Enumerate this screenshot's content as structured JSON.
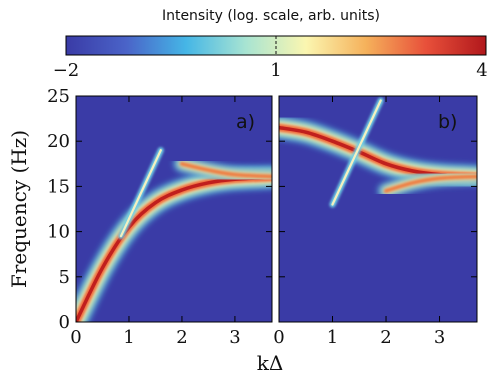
{
  "chart_data": {
    "type": "heatmap",
    "colorbar": {
      "title": "Intensity (log. scale, arb. units)",
      "ticks": [
        "−2",
        "1",
        "4"
      ],
      "range": [
        -2,
        4
      ],
      "colors": [
        "#3a3ba6",
        "#4a63c8",
        "#45b6e6",
        "#a8e4d2",
        "#fbf6b0",
        "#f5b15b",
        "#e8503a",
        "#b1181c"
      ]
    },
    "xlabel": "kΔ",
    "ylabel": "Frequency (Hz)",
    "ylim": [
      0,
      25
    ],
    "xlim": [
      0,
      3.7
    ],
    "y_ticks": [
      "0",
      "5",
      "10",
      "15",
      "20",
      "25"
    ],
    "x_ticks_a": [
      "0",
      "1",
      "2",
      "3"
    ],
    "x_ticks_b": [
      "0",
      "1",
      "2",
      "3"
    ],
    "panels": [
      {
        "label": "a)",
        "curves": [
          {
            "role": "main branch",
            "points": [
              [
                0,
                0
              ],
              [
                0.5,
                6
              ],
              [
                1.0,
                10.5
              ],
              [
                1.5,
                13.2
              ],
              [
                2.0,
                14.6
              ],
              [
                2.5,
                15.4
              ],
              [
                3.0,
                15.8
              ],
              [
                3.7,
                16.0
              ]
            ]
          },
          {
            "role": "upper branch",
            "points": [
              [
                2.0,
                17.5
              ],
              [
                2.5,
                16.8
              ],
              [
                3.0,
                16.3
              ],
              [
                3.7,
                16.1
              ]
            ]
          },
          {
            "role": "thin line",
            "points": [
              [
                0.85,
                9.5
              ],
              [
                1.6,
                19.0
              ]
            ]
          }
        ]
      },
      {
        "label": "b)",
        "curves": [
          {
            "role": "main branch",
            "points": [
              [
                0,
                21.5
              ],
              [
                0.5,
                21.0
              ],
              [
                1.0,
                20.0
              ],
              [
                1.5,
                18.8
              ],
              [
                2.0,
                17.5
              ],
              [
                2.5,
                16.7
              ],
              [
                3.0,
                16.3
              ],
              [
                3.7,
                16.1
              ]
            ]
          },
          {
            "role": "lower branch",
            "points": [
              [
                2.0,
                14.5
              ],
              [
                2.5,
                15.4
              ],
              [
                3.0,
                15.9
              ],
              [
                3.7,
                16.1
              ]
            ]
          },
          {
            "role": "thin line",
            "points": [
              [
                1.0,
                13.0
              ],
              [
                1.9,
                24.5
              ]
            ]
          }
        ]
      }
    ]
  }
}
